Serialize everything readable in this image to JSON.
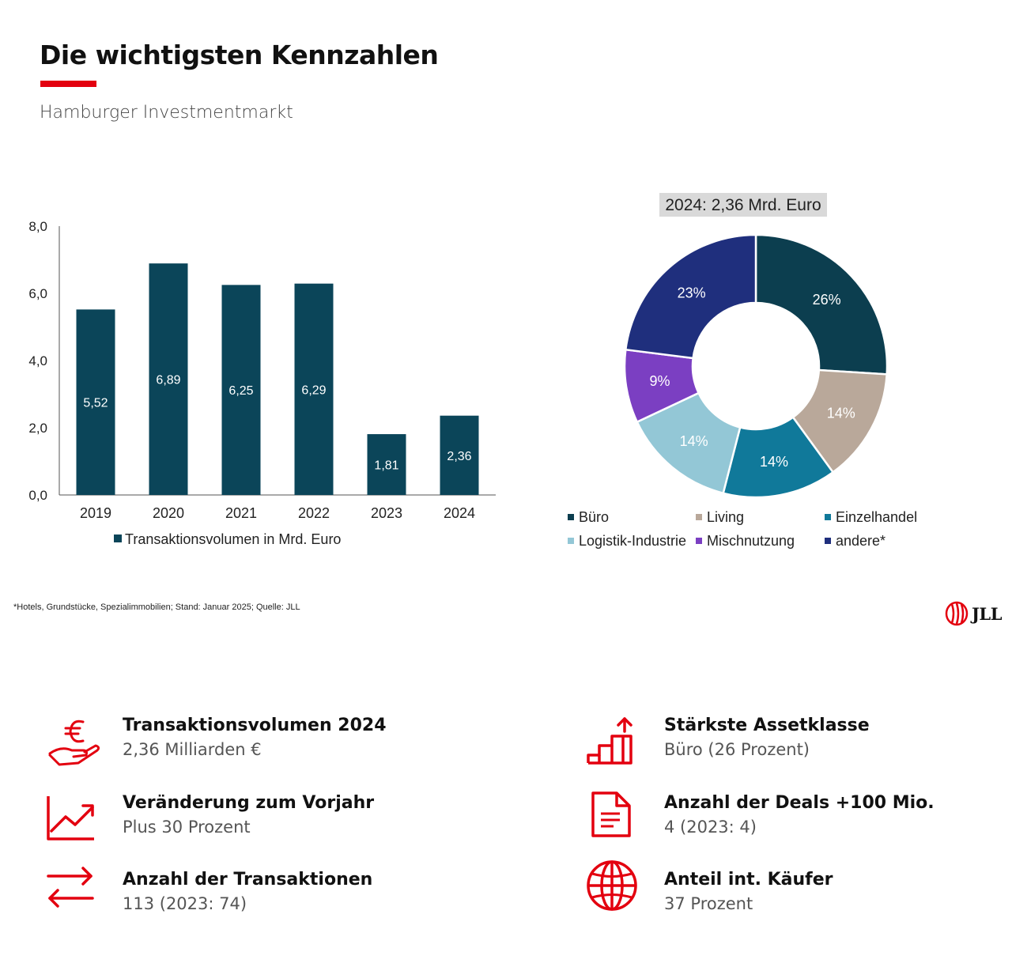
{
  "header": {
    "title": "Die wichtigsten Kennzahlen",
    "subtitle": "Hamburger Investmentmarkt",
    "accent_color": "#e3000f"
  },
  "chart_data": [
    {
      "type": "bar",
      "categories": [
        "2019",
        "2020",
        "2021",
        "2022",
        "2023",
        "2024"
      ],
      "series": [
        {
          "name": "Transaktionsvolumen in Mrd. Euro",
          "values": [
            5.52,
            6.89,
            6.25,
            6.29,
            1.81,
            2.36
          ]
        }
      ],
      "data_labels": [
        "5,52",
        "6,89",
        "6,25",
        "6,29",
        "1,81",
        "2,36"
      ],
      "y_ticks": [
        "0,0",
        "2,0",
        "4,0",
        "6,0",
        "8,0"
      ],
      "ylim": [
        0,
        8
      ],
      "grid": false,
      "legend": "bottom",
      "color": "#0b4559"
    },
    {
      "type": "pie",
      "title": "2024: 2,36 Mrd. Euro",
      "categories": [
        "Büro",
        "Living",
        "Einzelhandel",
        "Logistik-Industrie",
        "Mischnutzung",
        "andere*"
      ],
      "values": [
        26,
        14,
        14,
        14,
        9,
        23
      ],
      "labels": [
        "26%",
        "14%",
        "14%",
        "14%",
        "9%",
        "23%"
      ],
      "colors": [
        "#0c3e4f",
        "#b9a89a",
        "#10799a",
        "#93c7d6",
        "#7b3fc2",
        "#1f2f7d"
      ],
      "legend": "bottom",
      "donut": true
    }
  ],
  "footnote": "*Hotels, Grundstücke, Spezialimmobilien; Stand: Januar 2025; Quelle: JLL",
  "logo": {
    "text": "JLL"
  },
  "kpis": [
    {
      "icon": "euro-hand-icon",
      "title": "Transaktionsvolumen 2024",
      "value": "2,36 Milliarden €"
    },
    {
      "icon": "trend-up-icon",
      "title": "Veränderung zum Vorjahr",
      "value": "Plus 30 Prozent"
    },
    {
      "icon": "transfer-arrows-icon",
      "title": "Anzahl der Transaktionen",
      "value": "113 (2023: 74)"
    },
    {
      "icon": "stairs-arrow-icon",
      "title": "Stärkste Assetklasse",
      "value": "Büro (26 Prozent)"
    },
    {
      "icon": "document-icon",
      "title": "Anzahl der Deals +100 Mio.",
      "value": "4 (2023: 4)"
    },
    {
      "icon": "globe-icon",
      "title": "Anteil int. Käufer",
      "value": "37 Prozent"
    }
  ]
}
